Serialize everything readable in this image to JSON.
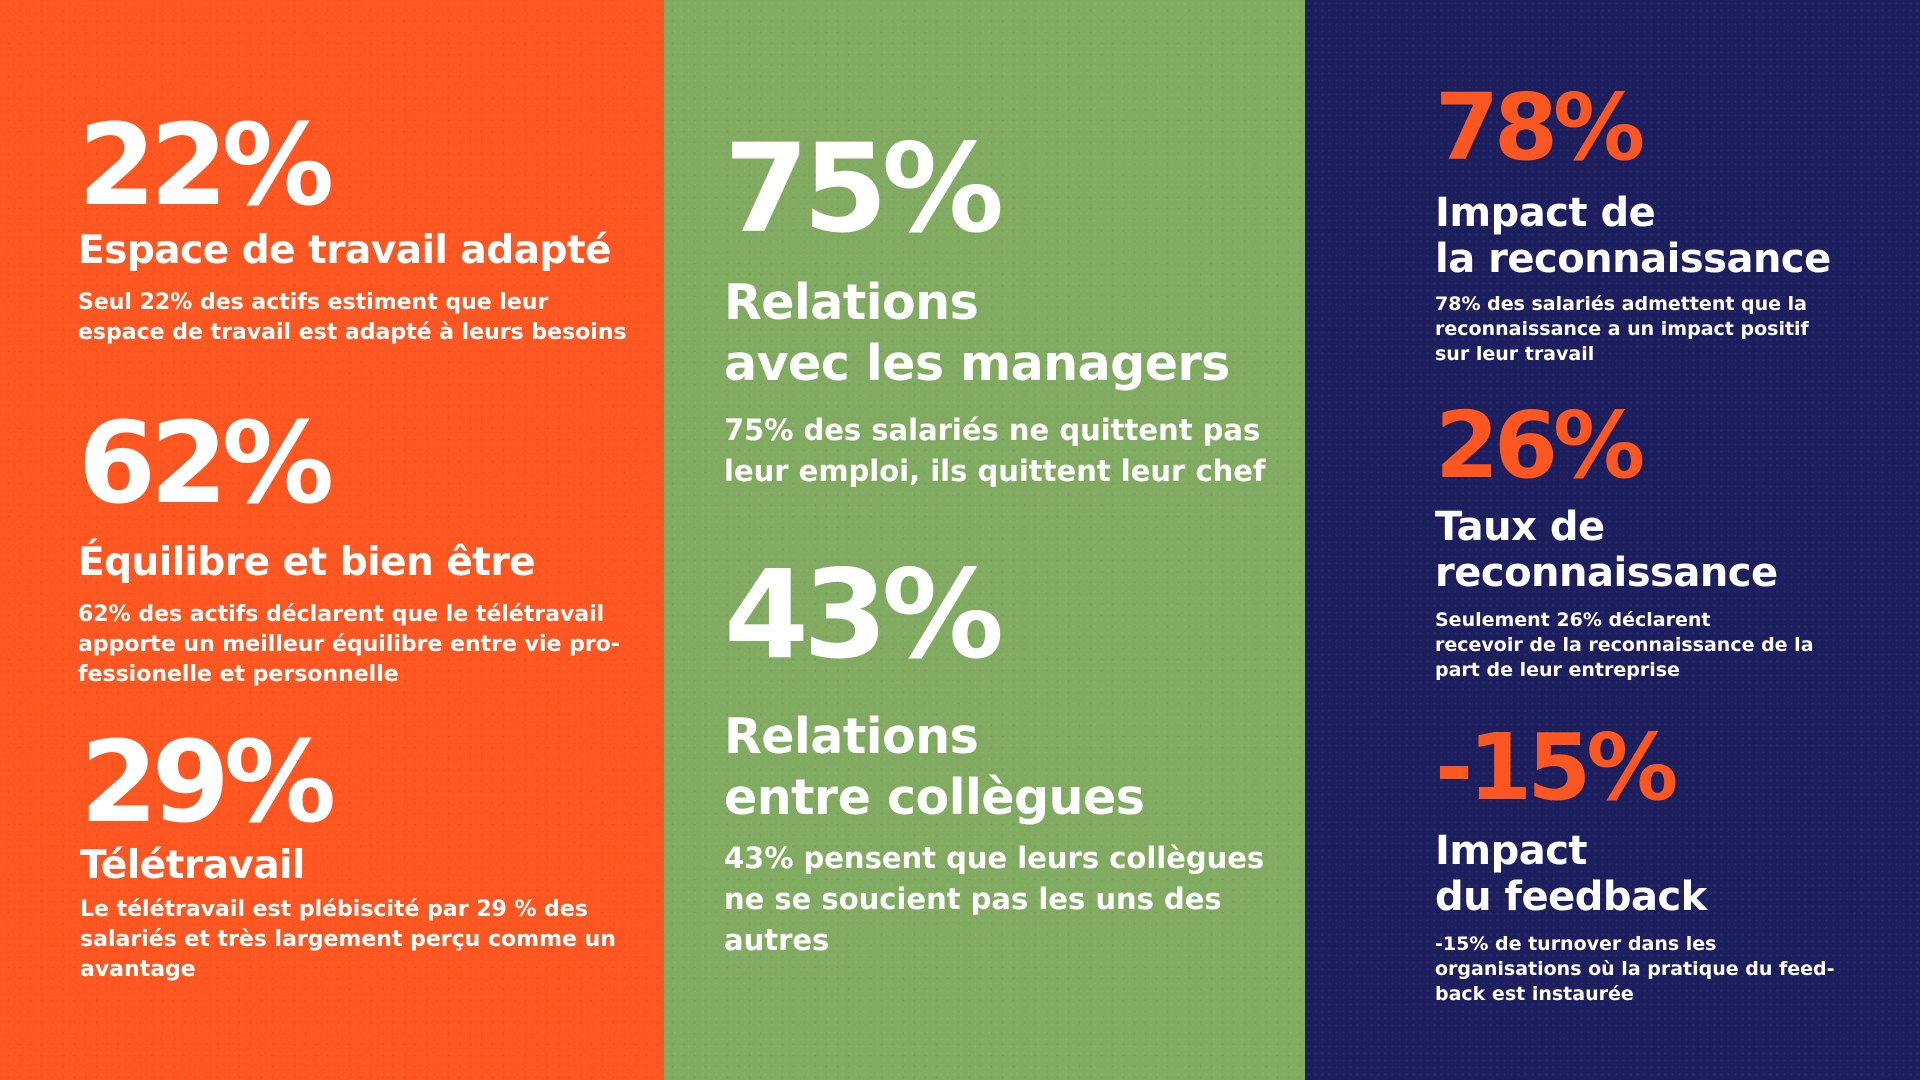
{
  "colors": {
    "left_background": "#fd5621",
    "middle_background": "#82ab62",
    "right_background": "#1d1e5d",
    "accent": "#fd5621",
    "text": "#ffffff"
  },
  "left_column": {
    "stats": [
      {
        "value": "22%",
        "heading_lines": [
          "Espace de travail adapté"
        ],
        "description_lines": [
          "Seul 22% des actifs estiment que leur",
          "espace de travail est adapté à leurs besoins"
        ]
      },
      {
        "value": "62%",
        "heading_lines": [
          "Équilibre et bien être"
        ],
        "description_lines": [
          "62% des actifs déclarent que le télétravail",
          "apporte un meilleur équilibre entre vie pro-",
          "fessionelle et personnelle"
        ]
      },
      {
        "value": "29%",
        "heading_lines": [
          "Télétravail"
        ],
        "description_lines": [
          "Le télétravail est plébiscité par 29 % des",
          "salariés et très largement perçu comme un",
          "avantage"
        ]
      }
    ]
  },
  "middle_column": {
    "stats": [
      {
        "value": "75%",
        "heading_lines": [
          "Relations",
          "avec les managers"
        ],
        "description_lines": [
          "75% des salariés ne quittent pas",
          "leur emploi, ils quittent leur chef"
        ]
      },
      {
        "value": "43%",
        "heading_lines": [
          "Relations",
          "entre collègues"
        ],
        "description_lines": [
          "43% pensent que leurs collègues",
          "ne se soucient pas les uns des",
          "autres"
        ]
      }
    ]
  },
  "right_column": {
    "stats": [
      {
        "value": "78%",
        "heading_lines": [
          "Impact de",
          "la reconnaissance"
        ],
        "description_lines": [
          "78% des salariés admettent que la",
          "reconnaissance a un impact positif",
          "sur leur travail"
        ]
      },
      {
        "value": "26%",
        "heading_lines": [
          "Taux de",
          "reconnaissance"
        ],
        "description_lines": [
          "Seulement 26% déclarent",
          "recevoir de la reconnaissance de la",
          "part de leur entreprise"
        ]
      },
      {
        "value": "-15%",
        "heading_lines": [
          "Impact",
          "du feedback"
        ],
        "description_lines": [
          "-15% de turnover dans les",
          "organisations où la pratique du feed-",
          "back est instaurée"
        ]
      }
    ]
  }
}
